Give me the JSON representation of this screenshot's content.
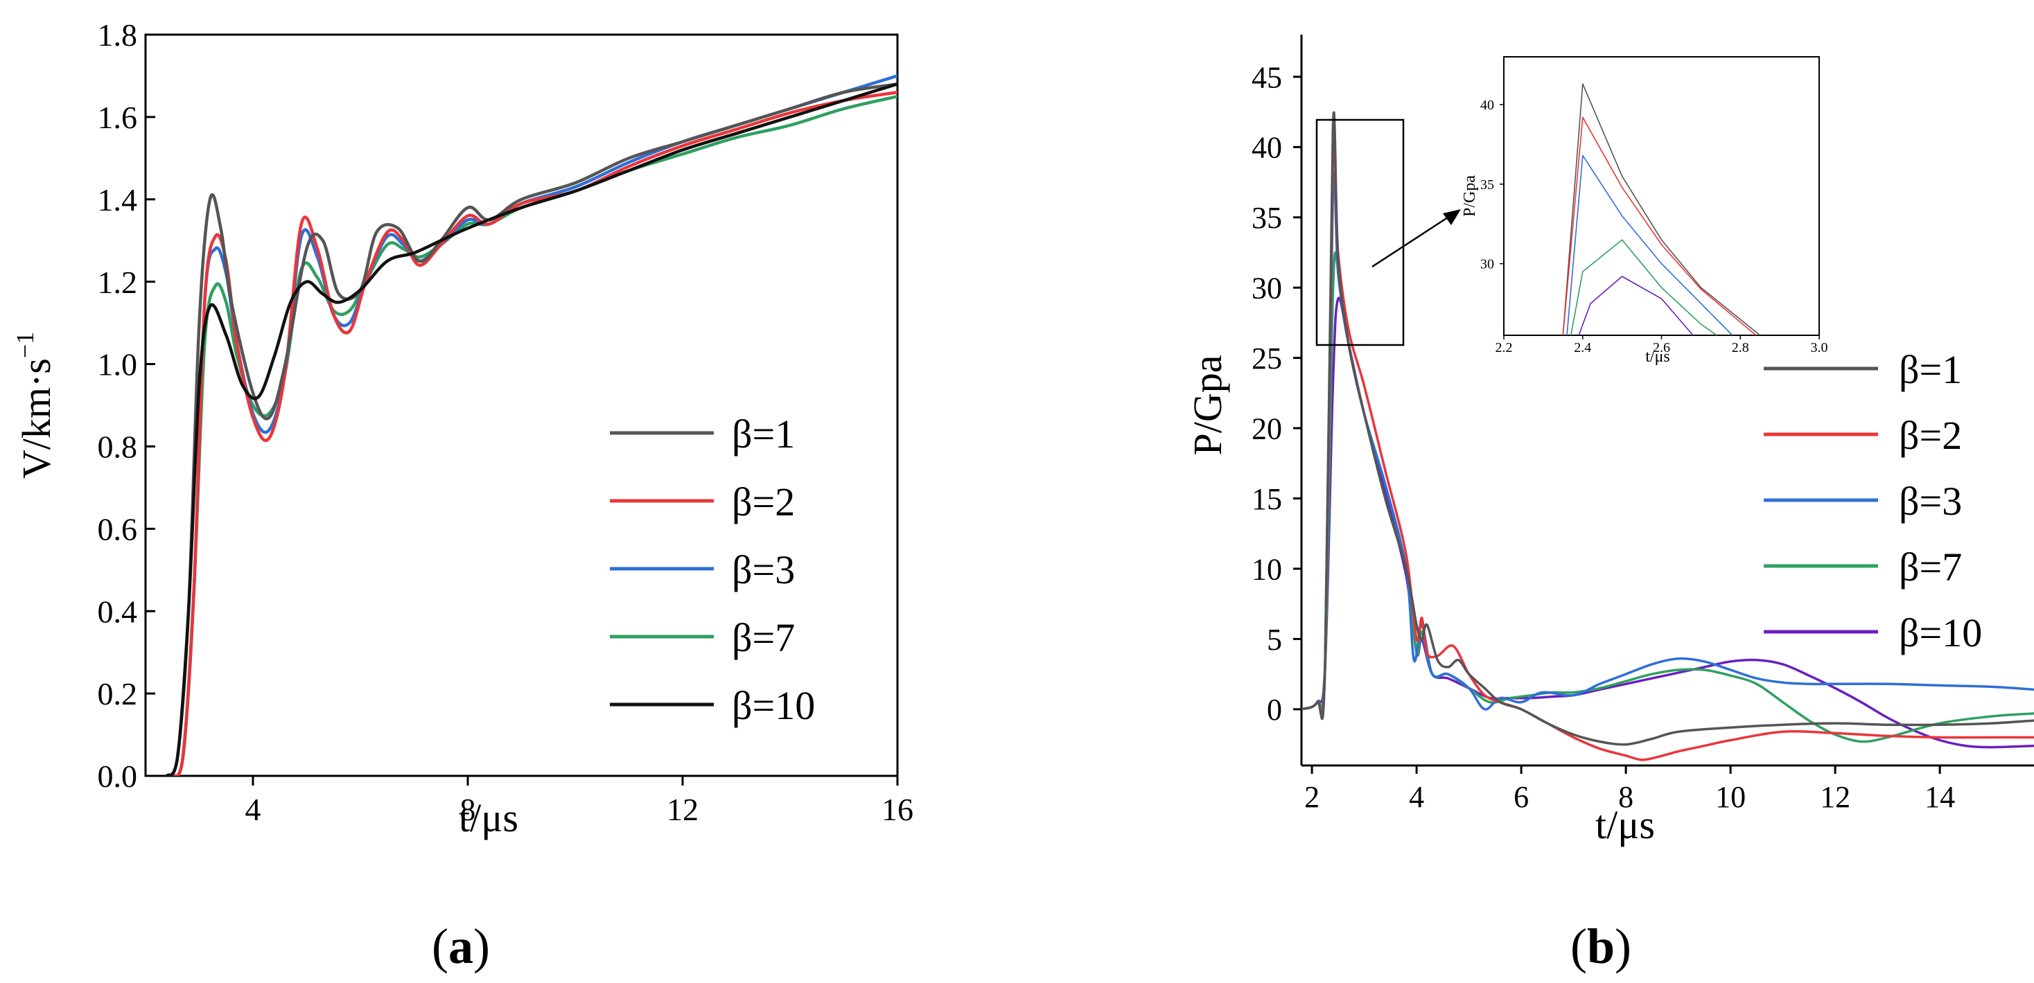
{
  "colors": {
    "b1": "#555555",
    "b2": "#e8363a",
    "b3": "#2f6fd6",
    "b7": "#2fa060",
    "b10": "#111111",
    "b10_right": "#6a1fc2"
  },
  "chart_data": [
    {
      "id": "a",
      "type": "line",
      "panel_label": "(a)",
      "panel_letter": "a",
      "xlabel": "t/μs",
      "ylabel": "V/km·s",
      "ylabel_sup": "−1",
      "xlim": [
        2,
        16
      ],
      "ylim": [
        0,
        1.8
      ],
      "xticks": [
        4,
        8,
        12,
        16
      ],
      "xtick_labels": [
        "4",
        "8",
        "12",
        "16"
      ],
      "yticks": [
        0,
        0.2,
        0.4,
        0.6,
        0.8,
        1.0,
        1.2,
        1.4,
        1.6,
        1.8
      ],
      "ytick_labels": [
        "0.0",
        "0.2",
        "0.4",
        "0.6",
        "0.8",
        "1.0",
        "1.2",
        "1.4",
        "1.6",
        "1.8"
      ],
      "legend_position": "lower-right",
      "series": [
        {
          "name": "β=1",
          "color_key": "b1",
          "x": [
            2.4,
            2.6,
            2.8,
            3.0,
            3.2,
            3.4,
            3.6,
            4.0,
            4.3,
            4.6,
            5.0,
            5.3,
            5.6,
            6.0,
            6.3,
            6.7,
            7.1,
            7.5,
            8.0,
            8.4,
            9.0,
            10.0,
            11.0,
            12.0,
            13.0,
            14.0,
            15.0,
            16.0
          ],
          "y": [
            0.0,
            0.05,
            0.4,
            1.1,
            1.4,
            1.33,
            1.15,
            0.93,
            0.87,
            1.0,
            1.28,
            1.3,
            1.17,
            1.18,
            1.32,
            1.33,
            1.25,
            1.3,
            1.38,
            1.35,
            1.4,
            1.44,
            1.5,
            1.54,
            1.58,
            1.62,
            1.66,
            1.68
          ]
        },
        {
          "name": "β=2",
          "color_key": "b2",
          "x": [
            2.5,
            2.7,
            2.9,
            3.1,
            3.3,
            3.5,
            3.7,
            4.0,
            4.3,
            4.6,
            4.9,
            5.2,
            5.5,
            5.8,
            6.1,
            6.5,
            6.8,
            7.1,
            7.5,
            8.0,
            8.4,
            9.0,
            10.0,
            11.0,
            12.0,
            13.0,
            14.0,
            15.0,
            16.0
          ],
          "y": [
            0.0,
            0.05,
            0.45,
            1.15,
            1.31,
            1.25,
            1.05,
            0.87,
            0.82,
            0.98,
            1.34,
            1.28,
            1.12,
            1.08,
            1.2,
            1.32,
            1.3,
            1.24,
            1.29,
            1.36,
            1.34,
            1.39,
            1.42,
            1.48,
            1.53,
            1.57,
            1.61,
            1.64,
            1.66
          ]
        },
        {
          "name": "β=3",
          "color_key": "b3",
          "x": [
            2.5,
            2.7,
            2.9,
            3.1,
            3.3,
            3.5,
            3.7,
            4.0,
            4.3,
            4.6,
            4.9,
            5.2,
            5.5,
            5.8,
            6.1,
            6.5,
            6.8,
            7.1,
            7.5,
            8.0,
            8.4,
            9.0,
            10.0,
            11.0,
            12.0,
            13.0,
            14.0,
            15.0,
            16.0
          ],
          "y": [
            0.0,
            0.05,
            0.45,
            1.15,
            1.28,
            1.22,
            1.05,
            0.88,
            0.84,
            0.98,
            1.31,
            1.26,
            1.12,
            1.1,
            1.2,
            1.31,
            1.29,
            1.25,
            1.29,
            1.35,
            1.34,
            1.39,
            1.43,
            1.49,
            1.54,
            1.58,
            1.62,
            1.66,
            1.7
          ]
        },
        {
          "name": "β=7",
          "color_key": "b7",
          "x": [
            2.5,
            2.7,
            2.9,
            3.1,
            3.3,
            3.5,
            3.7,
            4.0,
            4.3,
            4.6,
            4.9,
            5.2,
            5.5,
            5.8,
            6.1,
            6.5,
            6.8,
            7.1,
            7.5,
            8.0,
            8.4,
            9.0,
            10.0,
            11.0,
            12.0,
            13.0,
            14.0,
            15.0,
            16.0
          ],
          "y": [
            0.0,
            0.05,
            0.45,
            1.05,
            1.19,
            1.15,
            1.02,
            0.9,
            0.88,
            0.98,
            1.23,
            1.21,
            1.13,
            1.13,
            1.2,
            1.29,
            1.28,
            1.26,
            1.29,
            1.34,
            1.34,
            1.38,
            1.42,
            1.47,
            1.51,
            1.55,
            1.58,
            1.62,
            1.65
          ]
        },
        {
          "name": "β=10",
          "color_key": "b10",
          "x": [
            2.4,
            2.6,
            2.8,
            3.0,
            3.2,
            3.5,
            3.8,
            4.1,
            4.4,
            4.7,
            5.0,
            5.3,
            5.6,
            6.0,
            6.5,
            7.0,
            7.5,
            8.0,
            9.0,
            10.0,
            11.0,
            12.0,
            13.0,
            14.0,
            15.0,
            16.0
          ],
          "y": [
            0.0,
            0.05,
            0.4,
            0.95,
            1.14,
            1.07,
            0.95,
            0.92,
            1.02,
            1.15,
            1.2,
            1.17,
            1.15,
            1.18,
            1.25,
            1.27,
            1.3,
            1.33,
            1.38,
            1.42,
            1.47,
            1.52,
            1.56,
            1.6,
            1.64,
            1.68
          ]
        }
      ]
    },
    {
      "id": "b",
      "type": "line",
      "panel_label": "(b)",
      "panel_letter": "b",
      "xlabel": "t/μs",
      "ylabel": "P/Gpa",
      "xlim": [
        1.8,
        15.8
      ],
      "ylim": [
        -4,
        48
      ],
      "xticks": [
        2,
        4,
        6,
        8,
        10,
        12,
        14
      ],
      "xtick_labels": [
        "2",
        "4",
        "6",
        "8",
        "10",
        "12",
        "14"
      ],
      "yticks": [
        0,
        5,
        10,
        15,
        20,
        25,
        30,
        35,
        40,
        45
      ],
      "ytick_labels": [
        "0",
        "5",
        "10",
        "15",
        "20",
        "25",
        "30",
        "35",
        "40",
        "45"
      ],
      "legend_position": "right",
      "series": [
        {
          "name": "β=1",
          "color_key": "b1",
          "x": [
            1.8,
            2.1,
            2.25,
            2.4,
            2.5,
            2.7,
            3.0,
            3.4,
            3.8,
            4.0,
            4.1,
            4.2,
            4.4,
            4.6,
            4.8,
            5.0,
            5.3,
            5.6,
            6.0,
            6.5,
            7.0,
            7.5,
            8.0,
            8.5,
            9.0,
            10.0,
            11.0,
            12.0,
            13.0,
            14.0,
            15.0,
            15.8
          ],
          "y": [
            0,
            0.5,
            3,
            41.3,
            32,
            26,
            21,
            15,
            10,
            6,
            5,
            6,
            3.5,
            3,
            3.5,
            2.5,
            1.5,
            0.5,
            0,
            -1,
            -1.8,
            -2.3,
            -2.5,
            -2.1,
            -1.6,
            -1.3,
            -1.1,
            -1.0,
            -1.1,
            -1.1,
            -1.0,
            -0.8
          ]
        },
        {
          "name": "β=2",
          "color_key": "b2",
          "x": [
            1.8,
            2.1,
            2.25,
            2.4,
            2.5,
            2.7,
            3.0,
            3.4,
            3.8,
            4.0,
            4.1,
            4.2,
            4.4,
            4.7,
            5.0,
            5.3,
            5.6,
            6.0,
            6.5,
            7.0,
            7.5,
            8.0,
            8.3,
            8.6,
            9.0,
            9.5,
            10.0,
            11.0,
            12.0,
            13.0,
            14.0,
            15.0,
            15.8
          ],
          "y": [
            0,
            0.5,
            3,
            39.2,
            32.5,
            27,
            23,
            17,
            11,
            5,
            6.5,
            4,
            3.8,
            4.5,
            2.5,
            1.0,
            0.5,
            0,
            -1,
            -2,
            -2.8,
            -3.3,
            -3.6,
            -3.4,
            -3.0,
            -2.6,
            -2.2,
            -1.6,
            -1.7,
            -1.9,
            -2.0,
            -2.0,
            -2.0
          ]
        },
        {
          "name": "β=3",
          "color_key": "b3",
          "x": [
            1.8,
            2.1,
            2.25,
            2.4,
            2.5,
            2.7,
            3.0,
            3.4,
            3.8,
            3.95,
            4.1,
            4.3,
            4.6,
            5.0,
            5.3,
            5.6,
            6.0,
            6.4,
            7.0,
            7.5,
            8.0,
            8.5,
            9.0,
            9.5,
            10.0,
            10.5,
            11.0,
            11.5,
            12.0,
            13.0,
            14.0,
            15.0,
            15.8
          ],
          "y": [
            0,
            0.5,
            3,
            36.8,
            31,
            26,
            21,
            16,
            10,
            3.5,
            6,
            2.5,
            2.5,
            1.5,
            0,
            0.8,
            0.5,
            1.2,
            1.0,
            1.8,
            2.5,
            3.2,
            3.6,
            3.4,
            2.8,
            2.2,
            1.9,
            1.8,
            1.8,
            1.8,
            1.7,
            1.6,
            1.4
          ]
        },
        {
          "name": "β=7",
          "color_key": "b7",
          "x": [
            1.8,
            2.1,
            2.25,
            2.4,
            2.5,
            2.7,
            3.0,
            3.4,
            3.8,
            4.0,
            4.1,
            4.3,
            4.6,
            5.0,
            5.4,
            5.8,
            6.2,
            6.6,
            7.0,
            7.5,
            8.0,
            8.5,
            9.0,
            9.5,
            10.0,
            10.5,
            11.0,
            11.5,
            12.0,
            12.5,
            13.0,
            14.0,
            15.0,
            15.8
          ],
          "y": [
            0,
            0.5,
            3,
            29.5,
            31.5,
            26,
            21,
            16,
            10,
            4,
            5.5,
            2.5,
            2.5,
            1.5,
            0.5,
            0.8,
            1.0,
            1.2,
            1.2,
            1.5,
            2.0,
            2.5,
            2.8,
            2.8,
            2.4,
            1.8,
            0.5,
            -0.8,
            -1.8,
            -2.3,
            -2.0,
            -1.0,
            -0.5,
            -0.3
          ]
        },
        {
          "name": "β=10",
          "color_key": "b10_right",
          "x": [
            1.8,
            2.1,
            2.25,
            2.4,
            2.5,
            2.7,
            3.0,
            3.4,
            3.8,
            4.0,
            4.1,
            4.3,
            4.6,
            5.0,
            5.4,
            5.8,
            6.2,
            6.6,
            7.0,
            7.5,
            8.0,
            8.5,
            9.0,
            9.5,
            10.0,
            10.5,
            11.0,
            11.5,
            12.0,
            12.5,
            13.0,
            13.5,
            14.0,
            14.5,
            15.0,
            15.8
          ],
          "y": [
            0,
            0.5,
            3,
            23,
            29.2,
            26,
            21,
            15.5,
            9.5,
            4,
            5,
            2.5,
            2.2,
            1.5,
            0.8,
            0.8,
            0.8,
            0.9,
            1.0,
            1.4,
            1.8,
            2.2,
            2.6,
            3.0,
            3.4,
            3.5,
            3.2,
            2.4,
            1.5,
            0.5,
            -0.6,
            -1.5,
            -2.2,
            -2.6,
            -2.7,
            -2.6
          ]
        }
      ]
    },
    {
      "id": "inset",
      "type": "line",
      "xlabel": "t/μs",
      "ylabel": "P/Gpa",
      "xlim": [
        2.2,
        3.0
      ],
      "ylim": [
        25.5,
        43
      ],
      "xticks": [
        2.2,
        2.4,
        2.6,
        2.8,
        3.0
      ],
      "xtick_labels": [
        "2.2",
        "2.4",
        "2.6",
        "2.8",
        "3.0"
      ],
      "yticks": [
        30,
        35,
        40
      ],
      "ytick_labels": [
        "30",
        "35",
        "40"
      ],
      "series": [
        {
          "name": "β=1",
          "color_key": "b1",
          "x": [
            2.35,
            2.4,
            2.5,
            2.6,
            2.7,
            2.85
          ],
          "y": [
            25.5,
            41.3,
            35.5,
            31.5,
            28.5,
            25.5
          ]
        },
        {
          "name": "β=2",
          "color_key": "b2",
          "x": [
            2.35,
            2.4,
            2.5,
            2.6,
            2.7,
            2.84
          ],
          "y": [
            25.5,
            39.2,
            34.8,
            31.2,
            28.4,
            25.5
          ]
        },
        {
          "name": "β=3",
          "color_key": "b3",
          "x": [
            2.36,
            2.4,
            2.5,
            2.6,
            2.7,
            2.78
          ],
          "y": [
            25.5,
            36.8,
            33.0,
            30.0,
            27.5,
            25.5
          ]
        },
        {
          "name": "β=7",
          "color_key": "b7",
          "x": [
            2.37,
            2.4,
            2.5,
            2.6,
            2.7,
            2.74
          ],
          "y": [
            25.5,
            29.5,
            31.5,
            28.5,
            26.2,
            25.5
          ]
        },
        {
          "name": "β=10",
          "color_key": "b10_right",
          "x": [
            2.39,
            2.42,
            2.5,
            2.6,
            2.68
          ],
          "y": [
            25.5,
            27.5,
            29.2,
            27.8,
            25.5
          ]
        }
      ]
    }
  ]
}
